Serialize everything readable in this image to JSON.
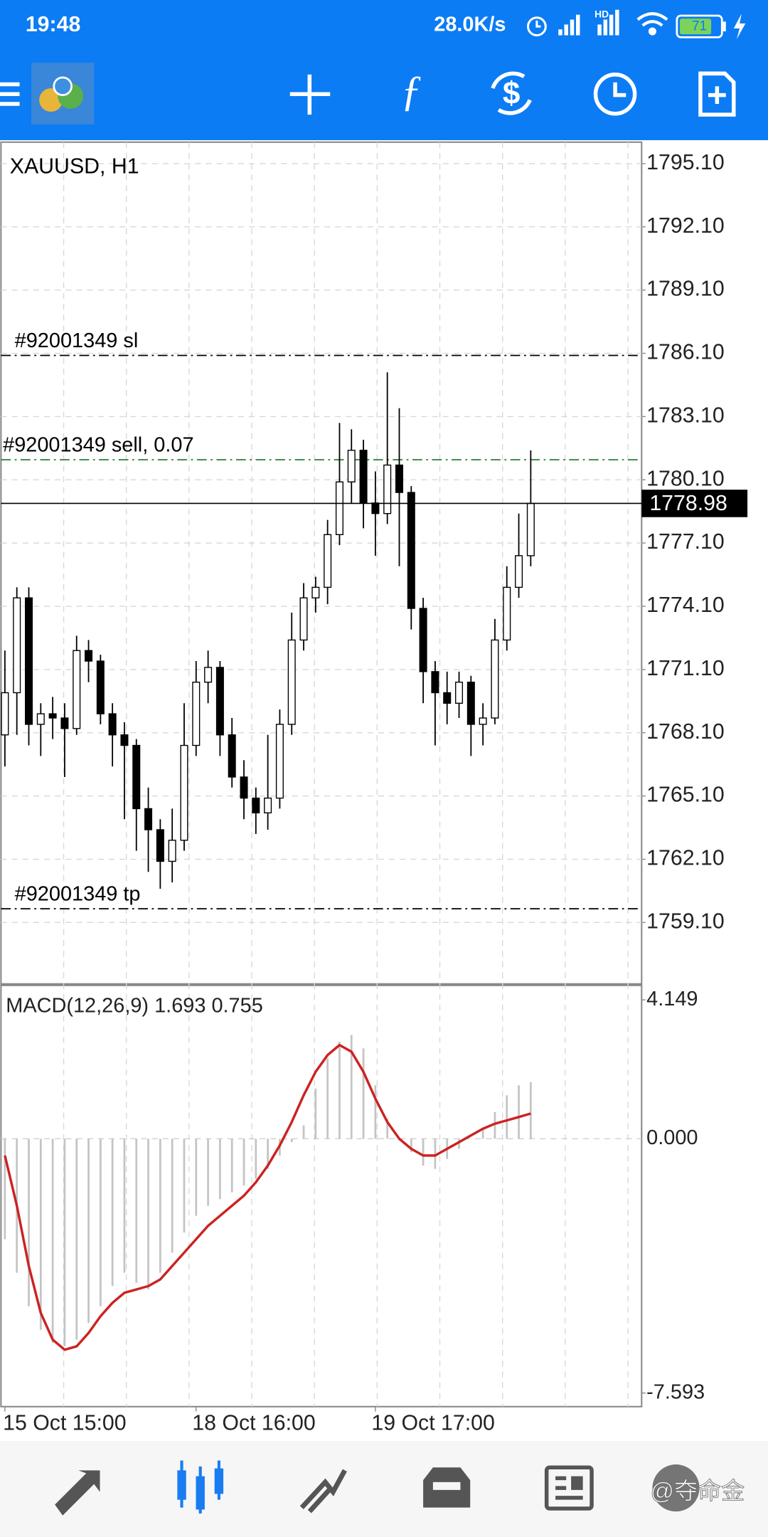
{
  "status_bar": {
    "time": "19:48",
    "network_speed": "28.0K/s",
    "signal_label": "HD",
    "battery": 71
  },
  "chart_data": {
    "type": "candlestick",
    "title": "XAUUSD, H1",
    "ohlc": [
      [
        1768.0,
        1772.0,
        1766.5,
        1770.0
      ],
      [
        1770.0,
        1775.0,
        1768.0,
        1774.5
      ],
      [
        1774.5,
        1775.0,
        1767.5,
        1768.5
      ],
      [
        1768.5,
        1769.5,
        1767.0,
        1769.0
      ],
      [
        1769.0,
        1769.8,
        1767.8,
        1768.8
      ],
      [
        1768.8,
        1769.5,
        1766.0,
        1768.3
      ],
      [
        1768.3,
        1772.7,
        1768.0,
        1772.0
      ],
      [
        1772.0,
        1772.5,
        1770.5,
        1771.5
      ],
      [
        1771.5,
        1771.8,
        1768.5,
        1769.0
      ],
      [
        1769.0,
        1769.5,
        1766.5,
        1768.0
      ],
      [
        1768.0,
        1768.6,
        1764.0,
        1767.5
      ],
      [
        1767.5,
        1767.8,
        1762.5,
        1764.5
      ],
      [
        1764.5,
        1765.5,
        1761.5,
        1763.5
      ],
      [
        1763.5,
        1764.0,
        1760.7,
        1762.0
      ],
      [
        1762.0,
        1764.5,
        1761.0,
        1763.0
      ],
      [
        1763.0,
        1769.5,
        1762.5,
        1767.5
      ],
      [
        1767.5,
        1771.5,
        1767.0,
        1770.5
      ],
      [
        1770.5,
        1772.0,
        1769.5,
        1771.2
      ],
      [
        1771.2,
        1771.5,
        1767.0,
        1768.0
      ],
      [
        1768.0,
        1768.8,
        1765.5,
        1766.0
      ],
      [
        1766.0,
        1766.8,
        1764.0,
        1765.0
      ],
      [
        1765.0,
        1765.5,
        1763.3,
        1764.3
      ],
      [
        1764.3,
        1768.0,
        1763.5,
        1765.0
      ],
      [
        1765.0,
        1769.2,
        1764.5,
        1768.5
      ],
      [
        1768.5,
        1773.8,
        1768.0,
        1772.5
      ],
      [
        1772.5,
        1775.2,
        1772.0,
        1774.5
      ],
      [
        1774.5,
        1775.5,
        1773.8,
        1775.0
      ],
      [
        1775.0,
        1778.2,
        1774.2,
        1777.5
      ],
      [
        1777.5,
        1782.8,
        1777.0,
        1780.0
      ],
      [
        1780.0,
        1782.5,
        1779.0,
        1781.5
      ],
      [
        1781.5,
        1782.0,
        1777.8,
        1779.0
      ],
      [
        1779.0,
        1780.5,
        1776.5,
        1778.5
      ],
      [
        1778.5,
        1785.2,
        1778.0,
        1780.8
      ],
      [
        1780.8,
        1783.5,
        1776.0,
        1779.5
      ],
      [
        1779.5,
        1779.8,
        1773.0,
        1774.0
      ],
      [
        1774.0,
        1774.5,
        1769.5,
        1771.0
      ],
      [
        1771.0,
        1771.5,
        1767.5,
        1770.0
      ],
      [
        1770.0,
        1771.0,
        1768.5,
        1769.5
      ],
      [
        1769.5,
        1771.0,
        1768.8,
        1770.5
      ],
      [
        1770.5,
        1770.8,
        1767.0,
        1768.5
      ],
      [
        1768.5,
        1769.5,
        1767.5,
        1768.8
      ],
      [
        1768.8,
        1773.5,
        1768.5,
        1772.5
      ],
      [
        1772.5,
        1776.0,
        1772.0,
        1775.0
      ],
      [
        1775.0,
        1778.5,
        1774.5,
        1776.5
      ],
      [
        1776.5,
        1781.5,
        1776.0,
        1778.98
      ]
    ],
    "categories": [
      "15 Oct 15:00",
      null,
      null,
      null,
      null,
      null,
      null,
      null,
      null,
      null,
      null,
      null,
      null,
      null,
      null,
      null,
      "18 Oct 16:00",
      null,
      null,
      null,
      null,
      null,
      null,
      null,
      null,
      null,
      null,
      null,
      null,
      null,
      null,
      "19 Oct 17:00",
      null,
      null,
      null,
      null,
      null,
      null,
      null,
      null,
      null,
      null,
      null,
      null,
      null
    ],
    "ylim": [
      1756.22,
      1796.12
    ],
    "yticks": [
      {
        "value": 1795.1,
        "label": "1795.10"
      },
      {
        "value": 1792.1,
        "label": "1792.10"
      },
      {
        "value": 1789.1,
        "label": "1789.10"
      },
      {
        "value": 1786.1,
        "label": "1786.10"
      },
      {
        "value": 1783.1,
        "label": "1783.10"
      },
      {
        "value": 1780.1,
        "label": "1780.10"
      },
      {
        "value": 1777.1,
        "label": "1777.10"
      },
      {
        "value": 1774.1,
        "label": "1774.10"
      },
      {
        "value": 1771.1,
        "label": "1771.10"
      },
      {
        "value": 1768.1,
        "label": "1768.10"
      },
      {
        "value": 1765.1,
        "label": "1765.10"
      },
      {
        "value": 1762.1,
        "label": "1762.10"
      },
      {
        "value": 1759.1,
        "label": "1759.10"
      }
    ],
    "grid": true,
    "order_lines": [
      {
        "label": "#92001349 sl",
        "value": 1786.0,
        "color": "#000000"
      },
      {
        "label": "#92001349 sell, 0.07",
        "value": 1781.05,
        "color": "#2e7d32"
      },
      {
        "label": "#92001349 tp",
        "value": 1759.75,
        "color": "#000000"
      }
    ],
    "last_price": 1778.98,
    "indicator": {
      "type": "macd",
      "title": "MACD(12,26,9) 1.693 0.755",
      "histogram": [
        -3.0,
        -4.0,
        -5.0,
        -5.7,
        -6.1,
        -6.2,
        -6.0,
        -5.5,
        -5.0,
        -4.4,
        -4.0,
        -4.3,
        -4.5,
        -4.0,
        -3.4,
        -2.8,
        -2.3,
        -2.0,
        -1.8,
        -1.6,
        -1.4,
        -1.2,
        -0.9,
        -0.5,
        -0.1,
        0.4,
        1.5,
        2.4,
        2.9,
        3.1,
        2.7,
        1.6,
        0.6,
        0.0,
        -0.4,
        -0.8,
        -0.9,
        -0.6,
        -0.3,
        0.0,
        0.3,
        0.8,
        1.3,
        1.6,
        1.693
      ],
      "signal": [
        -0.5,
        -2.0,
        -3.8,
        -5.2,
        -6.0,
        -6.3,
        -6.2,
        -5.8,
        -5.3,
        -4.9,
        -4.6,
        -4.5,
        -4.4,
        -4.2,
        -3.8,
        -3.4,
        -3.0,
        -2.6,
        -2.3,
        -2.0,
        -1.7,
        -1.3,
        -0.8,
        -0.2,
        0.5,
        1.3,
        2.0,
        2.5,
        2.8,
        2.6,
        2.0,
        1.2,
        0.5,
        0.0,
        -0.3,
        -0.5,
        -0.5,
        -0.3,
        -0.1,
        0.1,
        0.3,
        0.45,
        0.55,
        0.65,
        0.755
      ],
      "histogram_color": "#c4c4c4",
      "signal_color": "#cc2222",
      "ylim": [
        -8.0,
        4.56
      ],
      "yticks": [
        4.149,
        {
          "value": 0,
          "label": "0.000"
        },
        -7.593
      ]
    }
  },
  "watermark": "@夺命金"
}
